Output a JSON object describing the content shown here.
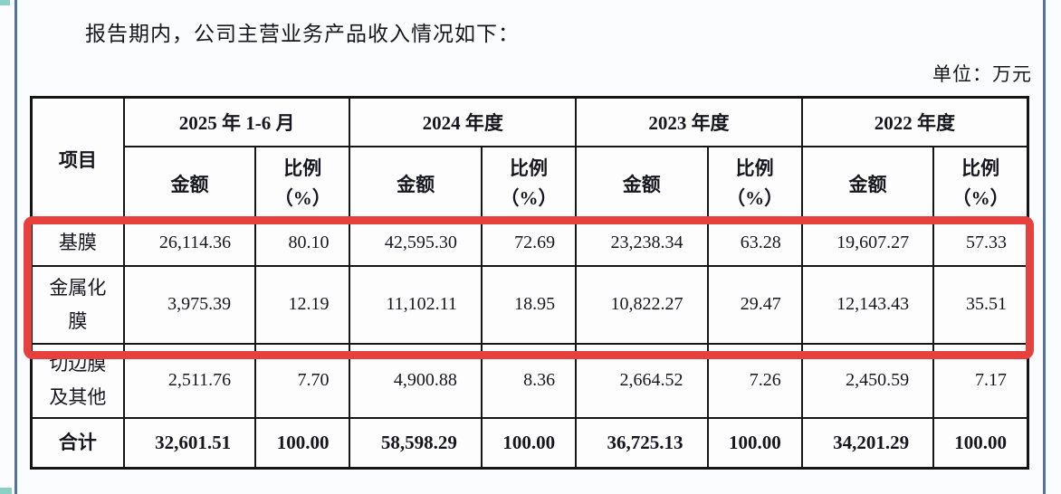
{
  "page": {
    "intro_text": "报告期内，公司主营业务产品收入情况如下：",
    "unit_label": "单位：万元"
  },
  "table": {
    "corner_header": "项目",
    "period_groups": [
      {
        "label": "2025 年 1-6 月"
      },
      {
        "label": "2024 年度"
      },
      {
        "label": "2023 年度"
      },
      {
        "label": "2022 年度"
      }
    ],
    "sub_headers": {
      "amount": "金额",
      "ratio_line1": "比例",
      "ratio_line2": "（%）"
    },
    "rows": [
      {
        "item": "基膜",
        "highlighted": true,
        "is_total": false,
        "values": [
          "26,114.36",
          "80.10",
          "42,595.30",
          "72.69",
          "23,238.34",
          "63.28",
          "19,607.27",
          "57.33"
        ]
      },
      {
        "item": "金属化膜",
        "highlighted": true,
        "is_total": false,
        "values": [
          "3,975.39",
          "12.19",
          "11,102.11",
          "18.95",
          "10,822.27",
          "29.47",
          "12,143.43",
          "35.51"
        ]
      },
      {
        "item": "切边膜及其他",
        "highlighted": false,
        "is_total": false,
        "values": [
          "2,511.76",
          "7.70",
          "4,900.88",
          "8.36",
          "2,664.52",
          "7.26",
          "2,450.59",
          "7.17"
        ]
      },
      {
        "item": "合计",
        "highlighted": false,
        "is_total": true,
        "values": [
          "32,601.51",
          "100.00",
          "58,598.29",
          "100.00",
          "36,725.13",
          "100.00",
          "34,201.29",
          "100.00"
        ]
      }
    ]
  },
  "colors": {
    "accent-red": "#e7413e",
    "rule-blue": "#54729c",
    "corner-teal": "#66c2b0",
    "table-border": "#151515",
    "page-bg": "#fbfcfe",
    "text": "#16161d"
  }
}
